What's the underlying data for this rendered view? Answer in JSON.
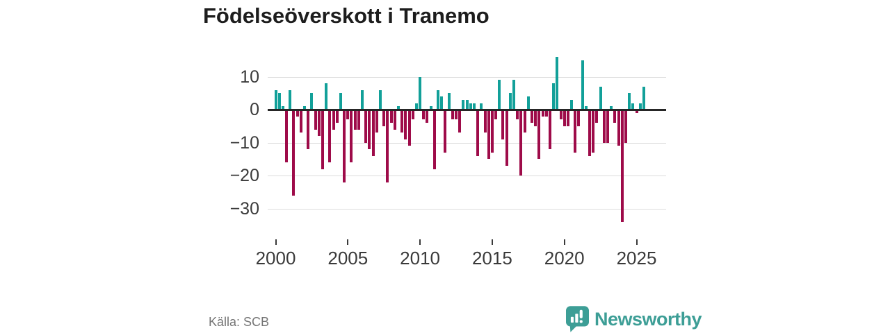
{
  "title": "Födelseöverskott i Tranemo",
  "source": "Källa: SCB",
  "brand": {
    "name": "Newsworthy",
    "color": "#3d9e96"
  },
  "colors": {
    "positive_bar": "#12a099",
    "negative_bar": "#9e0b49",
    "grid": "#dcdcdc",
    "zero_line": "#262626",
    "axis_text": "#3a3a3a",
    "muted_text": "#757575"
  },
  "chart_data": {
    "type": "bar",
    "title": "Födelseöverskott i Tranemo",
    "xlabel": "",
    "ylabel": "",
    "x_tick_labels": [
      "2000",
      "2005",
      "2010",
      "2015",
      "2020",
      "2025"
    ],
    "y_tick_values": [
      10,
      0,
      -10,
      -20,
      -30
    ],
    "y_tick_labels": [
      "10",
      "0",
      "−10",
      "−20",
      "−30"
    ],
    "ylim": [
      -36,
      17
    ],
    "grid": "horizontal",
    "legend": "none",
    "frequency": "quarterly",
    "series": [
      {
        "name": "Födelseöverskott",
        "data": [
          {
            "year": 2000,
            "values": [
              6,
              5,
              1,
              -16
            ]
          },
          {
            "year": 2001,
            "values": [
              6,
              -26,
              -2,
              -7
            ]
          },
          {
            "year": 2002,
            "values": [
              1,
              -12,
              5,
              -6
            ]
          },
          {
            "year": 2003,
            "values": [
              -8,
              -18,
              8,
              -16
            ]
          },
          {
            "year": 2004,
            "values": [
              -6,
              -4,
              5,
              -22
            ]
          },
          {
            "year": 2005,
            "values": [
              -3,
              -16,
              -6,
              -6
            ]
          },
          {
            "year": 2006,
            "values": [
              6,
              -10,
              -12,
              -14
            ]
          },
          {
            "year": 2007,
            "values": [
              -7,
              6,
              -5,
              -22
            ]
          },
          {
            "year": 2008,
            "values": [
              -4,
              -6,
              1,
              -7
            ]
          },
          {
            "year": 2009,
            "values": [
              -9,
              -11,
              -3,
              2
            ]
          },
          {
            "year": 2010,
            "values": [
              10,
              -3,
              -4,
              1
            ]
          },
          {
            "year": 2011,
            "values": [
              -18,
              6,
              4,
              -13
            ]
          },
          {
            "year": 2012,
            "values": [
              5,
              -3,
              -3,
              -7
            ]
          },
          {
            "year": 2013,
            "values": [
              3,
              3,
              2,
              2
            ]
          },
          {
            "year": 2014,
            "values": [
              -14,
              2,
              -7,
              -15
            ]
          },
          {
            "year": 2015,
            "values": [
              -13,
              -3,
              9,
              -9
            ]
          },
          {
            "year": 2016,
            "values": [
              -17,
              5,
              9,
              -3
            ]
          },
          {
            "year": 2017,
            "values": [
              -20,
              -7,
              4,
              -4
            ]
          },
          {
            "year": 2018,
            "values": [
              -5,
              -15,
              -2,
              -2
            ]
          },
          {
            "year": 2019,
            "values": [
              -12,
              8,
              16,
              -3
            ]
          },
          {
            "year": 2020,
            "values": [
              -5,
              -5,
              3,
              -13
            ]
          },
          {
            "year": 2021,
            "values": [
              -5,
              15,
              1,
              -14
            ]
          },
          {
            "year": 2022,
            "values": [
              -13,
              -4,
              7,
              -10
            ]
          },
          {
            "year": 2023,
            "values": [
              -10,
              1,
              -4,
              -11
            ]
          },
          {
            "year": 2024,
            "values": [
              -34,
              -10,
              5,
              2
            ]
          },
          {
            "year": 2025,
            "values": [
              -1,
              2,
              7
            ]
          }
        ]
      }
    ]
  }
}
